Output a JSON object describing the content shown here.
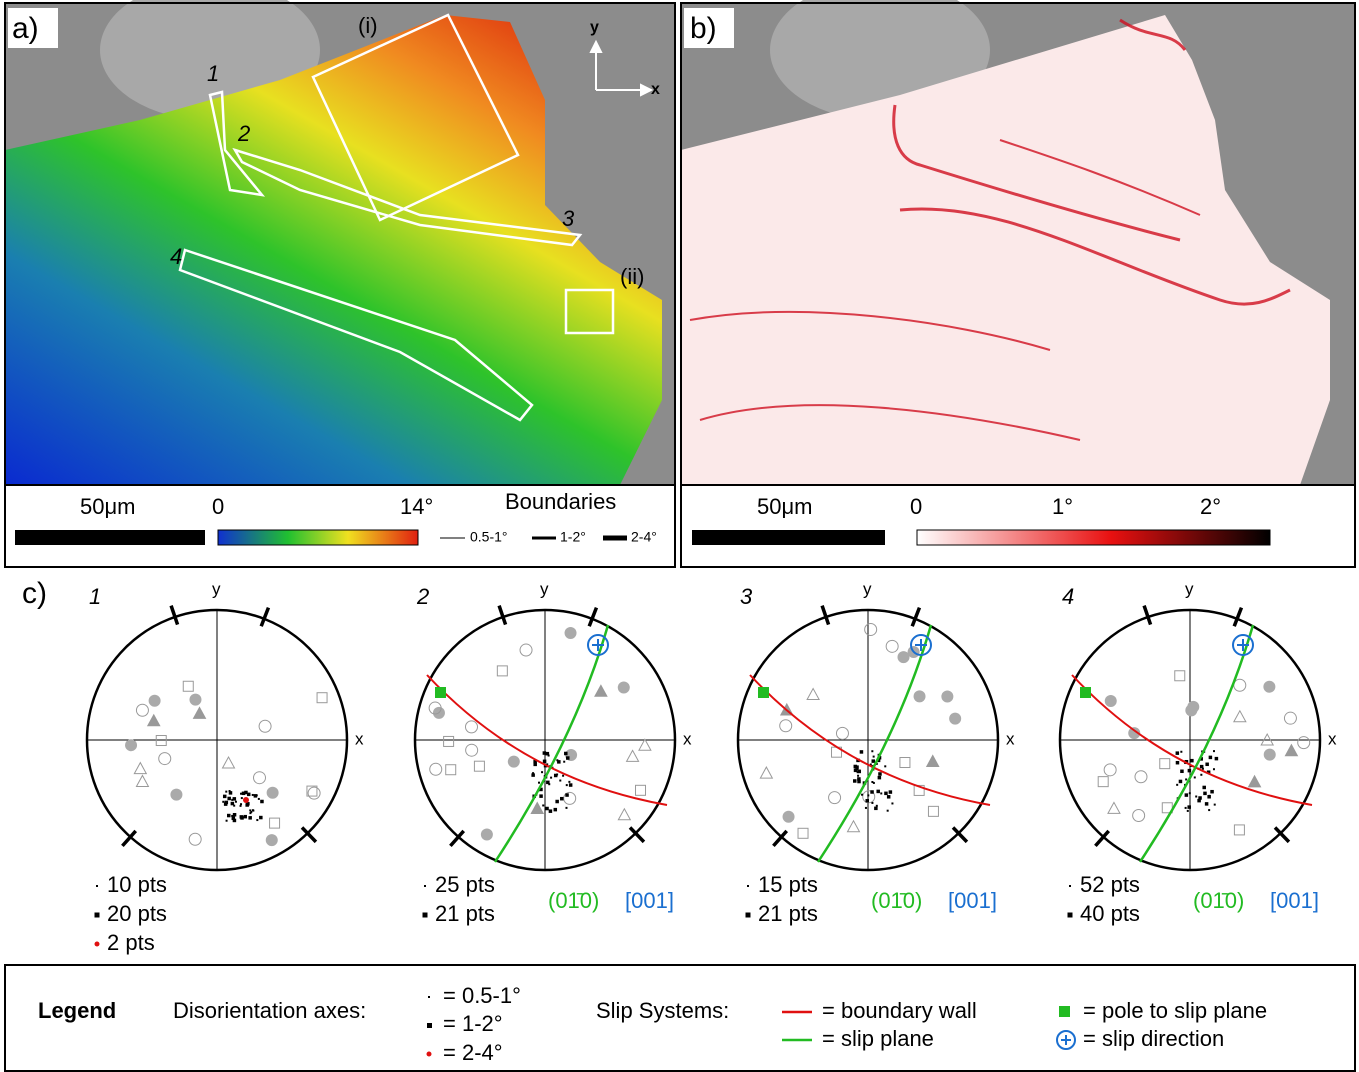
{
  "panel_a": {
    "label": "a)",
    "regions": [
      "(i)",
      "1",
      "2",
      "3",
      "4",
      "(ii)"
    ],
    "axes": [
      "y",
      "x"
    ],
    "scale_bar": "50μm",
    "colorbar_ticks": [
      "0",
      "14°"
    ],
    "boundaries": {
      "title": "Boundaries",
      "items": [
        "0.5-1°",
        "1-2°",
        "2-4°"
      ]
    }
  },
  "panel_b": {
    "label": "b)",
    "scale_bar": "50μm",
    "colorbar_ticks": [
      "0",
      "1°",
      "2°"
    ]
  },
  "panel_c": {
    "label": "c)",
    "nets": [
      {
        "label": "1",
        "y": "y",
        "x": "x",
        "counts": [
          "10 pts",
          "20 pts",
          "2 pts"
        ]
      },
      {
        "label": "2",
        "y": "y",
        "x": "x",
        "counts": [
          "25 pts",
          "21 pts"
        ],
        "slip_plane": "(01̄0)",
        "slip_direction": "[001]"
      },
      {
        "label": "3",
        "y": "y",
        "x": "x",
        "counts": [
          "15 pts",
          "21 pts"
        ],
        "slip_plane": "(01̄0)",
        "slip_direction": "[001]"
      },
      {
        "label": "4",
        "y": "y",
        "x": "x",
        "counts": [
          "52 pts",
          "40 pts"
        ],
        "slip_plane": "(01̄0)",
        "slip_direction": "[001]"
      }
    ]
  },
  "legend": {
    "title": "Legend",
    "disorientation": "Disorientation axes:",
    "dis_items": [
      "= 0.5-1°",
      "= 1-2°",
      "= 2-4°"
    ],
    "slip": "Slip Systems:",
    "wall": "= boundary wall",
    "plane": "= slip plane",
    "pole": "= pole to slip plane",
    "direction": "= slip direction"
  }
}
